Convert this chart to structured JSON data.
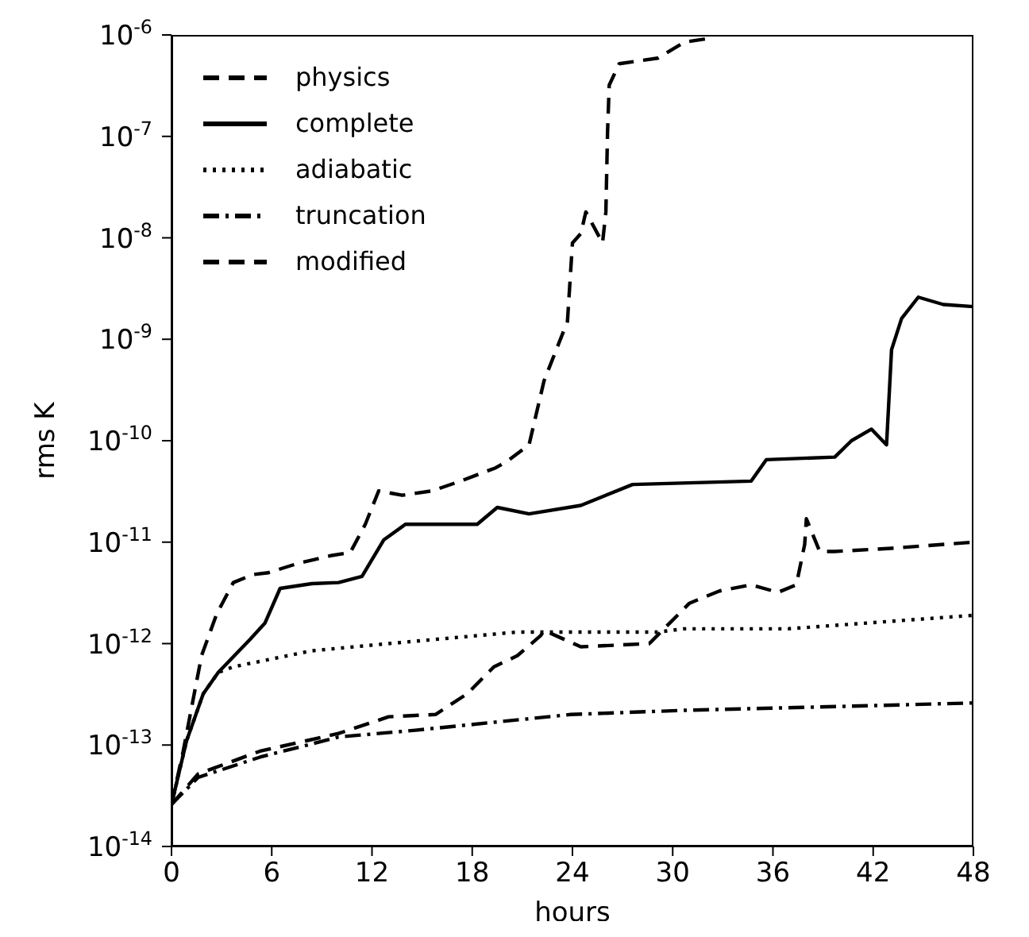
{
  "chart_data": {
    "type": "line",
    "xlabel": "hours",
    "ylabel": "rms  K",
    "log": "y",
    "grid": false,
    "legend": "top left",
    "marker": "none",
    "xlim": [
      0,
      48
    ],
    "xticks": [
      0,
      6,
      12,
      18,
      24,
      30,
      36,
      42,
      48
    ],
    "ylim": [
      1e-14,
      1e-06
    ],
    "yticks": [
      {
        "value": 1e-14,
        "label": "10$^{-14}$"
      },
      {
        "value": 1e-13,
        "label": "10$^{-13}$"
      },
      {
        "value": 1e-12,
        "label": "10$^{-12}$"
      },
      {
        "value": 1e-11,
        "label": "10$^{-11}$"
      },
      {
        "value": 1e-10,
        "label": "10$^{-10}$"
      },
      {
        "value": 1e-09,
        "label": "10$^{-9}$"
      },
      {
        "value": 1e-08,
        "label": "10$^{-8}$"
      },
      {
        "value": 1e-07,
        "label": "10$^{-7}$"
      },
      {
        "value": 1e-06,
        "label": "10$^{-6}$"
      }
    ],
    "series": [
      {
        "name": "physics",
        "color": "#000000",
        "line_style": "dashed",
        "x": [
          0,
          0.7,
          1.8,
          2.7,
          3.7,
          4.9,
          5.8,
          7.6,
          9.6,
          10.7,
          11.6,
          12.4,
          13.8,
          15.6,
          17.3,
          19.4,
          20.1,
          21.4,
          22.3,
          23.7,
          24,
          24.5,
          24.8,
          25.8,
          26,
          26.1,
          26.2,
          26.8,
          29.1,
          30.7,
          32.3
        ],
        "values": [
          2.6e-14,
          8.7e-14,
          7.6e-13,
          1.95e-12,
          4e-12,
          4.8e-12,
          5e-12,
          6.2e-12,
          7.4e-12,
          7.9e-12,
          1.5e-11,
          3.2e-11,
          2.9e-11,
          3.2e-11,
          4e-11,
          5.4e-11,
          6.3e-11,
          9.1e-11,
          3.9e-10,
          1.5e-09,
          8.9e-09,
          1.1e-08,
          1.8e-08,
          8.9e-09,
          1.8e-08,
          1.1e-07,
          3.2e-07,
          5.2e-07,
          5.9e-07,
          8.5e-07,
          9.3e-07
        ]
      },
      {
        "name": "complete",
        "color": "#000000",
        "line_style": "solid",
        "x": [
          0,
          0.9,
          1.9,
          2.8,
          4.7,
          5.6,
          6.5,
          8.4,
          10,
          11.4,
          12.7,
          14,
          18.3,
          19.5,
          21.4,
          24.5,
          27.6,
          34.7,
          35.6,
          39.7,
          40.7,
          41.9,
          42.8,
          43.1,
          43.7,
          44.7,
          46.2,
          48
        ],
        "values": [
          2.6e-14,
          1.1e-13,
          3.2e-13,
          5.2e-13,
          1.1e-12,
          1.6e-12,
          3.5e-12,
          3.9e-12,
          4e-12,
          4.6e-12,
          1.05e-11,
          1.5e-11,
          1.5e-11,
          2.2e-11,
          1.9e-11,
          2.3e-11,
          3.7e-11,
          4e-11,
          6.5e-11,
          6.9e-11,
          1e-10,
          1.3e-10,
          9.1e-11,
          7.9e-10,
          1.6e-09,
          2.6e-09,
          2.2e-09,
          2.1e-09
        ]
      },
      {
        "name": "adiabatic",
        "color": "#000000",
        "line_style": "dotted",
        "x": [
          0,
          0.9,
          1.9,
          2.8,
          3.7,
          8.4,
          13,
          20.7,
          24.5,
          29.1,
          30.7,
          36.9,
          48
        ],
        "values": [
          2.6e-14,
          1.1e-13,
          3.2e-13,
          5.2e-13,
          5.9e-13,
          8.5e-13,
          1e-12,
          1.3e-12,
          1.3e-12,
          1.3e-12,
          1.4e-12,
          1.4e-12,
          1.9e-12
        ]
      },
      {
        "name": "truncation",
        "color": "#000000",
        "line_style": "dashdot",
        "x": [
          0,
          1.6,
          5.3,
          10,
          14.6,
          23.9,
          30.7,
          40,
          48
        ],
        "values": [
          2.6e-14,
          4.8e-14,
          7.6e-14,
          1.2e-13,
          1.4e-13,
          2e-13,
          2.2e-13,
          2.4e-13,
          2.6e-13
        ]
      },
      {
        "name": "modified",
        "color": "#000000",
        "line_style": "dashed",
        "x": [
          0,
          1.6,
          5.3,
          10,
          13,
          15.8,
          17.7,
          19.3,
          20.7,
          22.1,
          22.3,
          24.5,
          28.6,
          31,
          32.8,
          34.7,
          36.3,
          37.4,
          37.9,
          38,
          38.8,
          39.7,
          43.1,
          48
        ],
        "values": [
          2.6e-14,
          5.2e-14,
          8.7e-14,
          1.3e-13,
          1.9e-13,
          2e-13,
          3.2e-13,
          5.9e-13,
          7.6e-13,
          1.2e-12,
          1.35e-12,
          9.3e-13,
          1e-12,
          2.5e-12,
          3.3e-12,
          3.8e-12,
          3.2e-12,
          3.8e-12,
          9.5e-12,
          1.7e-11,
          8.1e-12,
          8.1e-12,
          8.7e-12,
          1e-11
        ]
      }
    ]
  }
}
